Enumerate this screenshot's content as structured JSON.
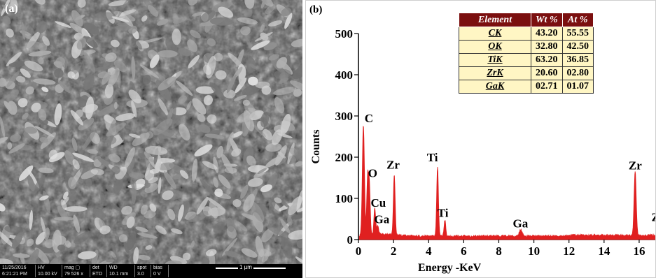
{
  "sem": {
    "panel_label": "(a)",
    "databar": [
      {
        "top": "11/25/2016",
        "bottom": "6:21:21 PM"
      },
      {
        "top": "HV",
        "bottom": "10.00 kV"
      },
      {
        "top": "mag ▢",
        "bottom": "79 526 x"
      },
      {
        "top": "det",
        "bottom": "ETD"
      },
      {
        "top": "WD",
        "bottom": "10.1 mm"
      },
      {
        "top": "spot",
        "bottom": "3.0"
      },
      {
        "top": "bias",
        "bottom": "0 V"
      }
    ],
    "scale_label": "1 µm"
  },
  "eds": {
    "panel_label": "(b)",
    "table": {
      "headers": [
        "Element",
        "Wt %",
        "At %"
      ],
      "rows": [
        [
          "CK",
          "43.20",
          "55.55"
        ],
        [
          "OK",
          "32.80",
          "42.50"
        ],
        [
          "TiK",
          "63.20",
          "36.85"
        ],
        [
          "ZrK",
          "20.60",
          "02.80"
        ],
        [
          "GaK",
          "02.71",
          "01.07"
        ]
      ]
    }
  },
  "chart_data": {
    "type": "line",
    "xlabel": "Energy -KeV",
    "ylabel": "Counts",
    "xlim": [
      0,
      17
    ],
    "ylim": [
      0,
      500
    ],
    "xticks": [
      0,
      2,
      4,
      6,
      8,
      10,
      12,
      14,
      16
    ],
    "yticks": [
      0,
      100,
      200,
      300,
      400,
      500
    ],
    "color": "#e02020",
    "peaks": [
      {
        "x": 0.28,
        "y": 268,
        "w": 0.06
      },
      {
        "x": 0.52,
        "y": 135,
        "w": 0.05
      },
      {
        "x": 0.62,
        "y": 120,
        "w": 0.05
      },
      {
        "x": 0.93,
        "y": 65,
        "w": 0.05
      },
      {
        "x": 1.1,
        "y": 22,
        "w": 0.05
      },
      {
        "x": 2.04,
        "y": 148,
        "w": 0.05
      },
      {
        "x": 4.51,
        "y": 168,
        "w": 0.05
      },
      {
        "x": 4.93,
        "y": 38,
        "w": 0.05
      },
      {
        "x": 9.25,
        "y": 15,
        "w": 0.08
      },
      {
        "x": 15.77,
        "y": 155,
        "w": 0.06
      },
      {
        "x": 17.6,
        "y": 40,
        "w": 0.08
      }
    ],
    "annotations": [
      {
        "text": "C",
        "x": 0.35,
        "y": 285
      },
      {
        "text": "O",
        "x": 0.55,
        "y": 152
      },
      {
        "text": "Cu",
        "x": 0.7,
        "y": 80
      },
      {
        "text": "Ga",
        "x": 0.9,
        "y": 40
      },
      {
        "text": "Zr",
        "x": 1.6,
        "y": 172
      },
      {
        "text": "Ti",
        "x": 3.9,
        "y": 190
      },
      {
        "text": "Ti",
        "x": 4.5,
        "y": 55
      },
      {
        "text": "Ga",
        "x": 8.8,
        "y": 30
      },
      {
        "text": "Zr",
        "x": 15.4,
        "y": 170
      },
      {
        "text": "Zr",
        "x": 16.7,
        "y": 45
      }
    ]
  }
}
